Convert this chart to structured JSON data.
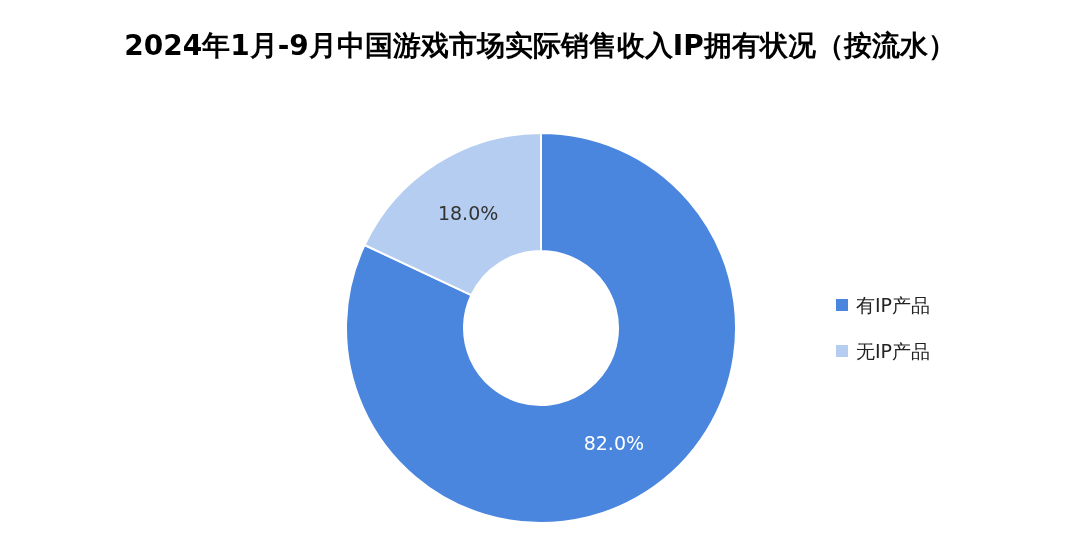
{
  "chart_data": {
    "type": "donut",
    "title": "2024年1月-9月中国游戏市场实际销售收入IP拥有状况（按流水）",
    "categories": [
      "有IP产品",
      "无IP产品"
    ],
    "values": [
      82.0,
      18.0
    ],
    "colors": [
      "#4a86de",
      "#b4cdf0"
    ],
    "value_labels": [
      "82.0%",
      "18.0%"
    ],
    "legend": "right"
  }
}
